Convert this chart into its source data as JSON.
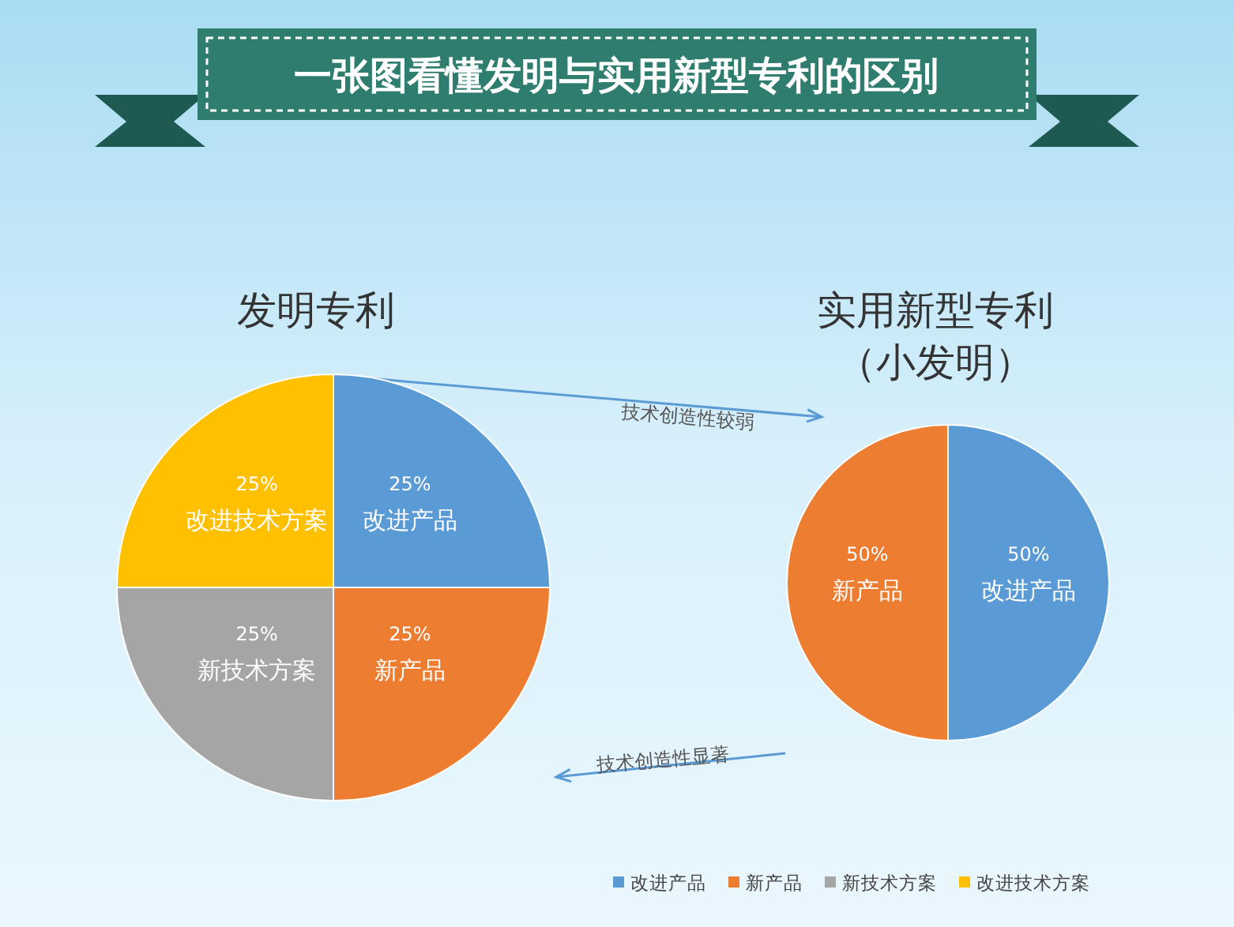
{
  "chart_data": [
    {
      "type": "other",
      "title": "一张图看懂发明与实用新型专利的区别",
      "annotations": [
        "技术创造性较弱",
        "技术创造性显著"
      ]
    },
    {
      "type": "pie",
      "title": "发明专利",
      "categories": [
        "改进产品",
        "新产品",
        "新技术方案",
        "改进技术方案"
      ],
      "values": [
        25,
        25,
        25,
        25
      ],
      "colors": [
        "#5b9bd5",
        "#ed7d31",
        "#a5a5a5",
        "#ffc000"
      ],
      "value_labels": [
        "25%",
        "25%",
        "25%",
        "25%"
      ],
      "legend": "bottom right"
    },
    {
      "type": "pie",
      "title": "实用新型专利",
      "subtitle": "（小发明）",
      "categories": [
        "改进产品",
        "新产品"
      ],
      "values": [
        50,
        50
      ],
      "colors": [
        "#5b9bd5",
        "#ed7d31"
      ],
      "value_labels": [
        "50%",
        "50%"
      ]
    }
  ]
}
